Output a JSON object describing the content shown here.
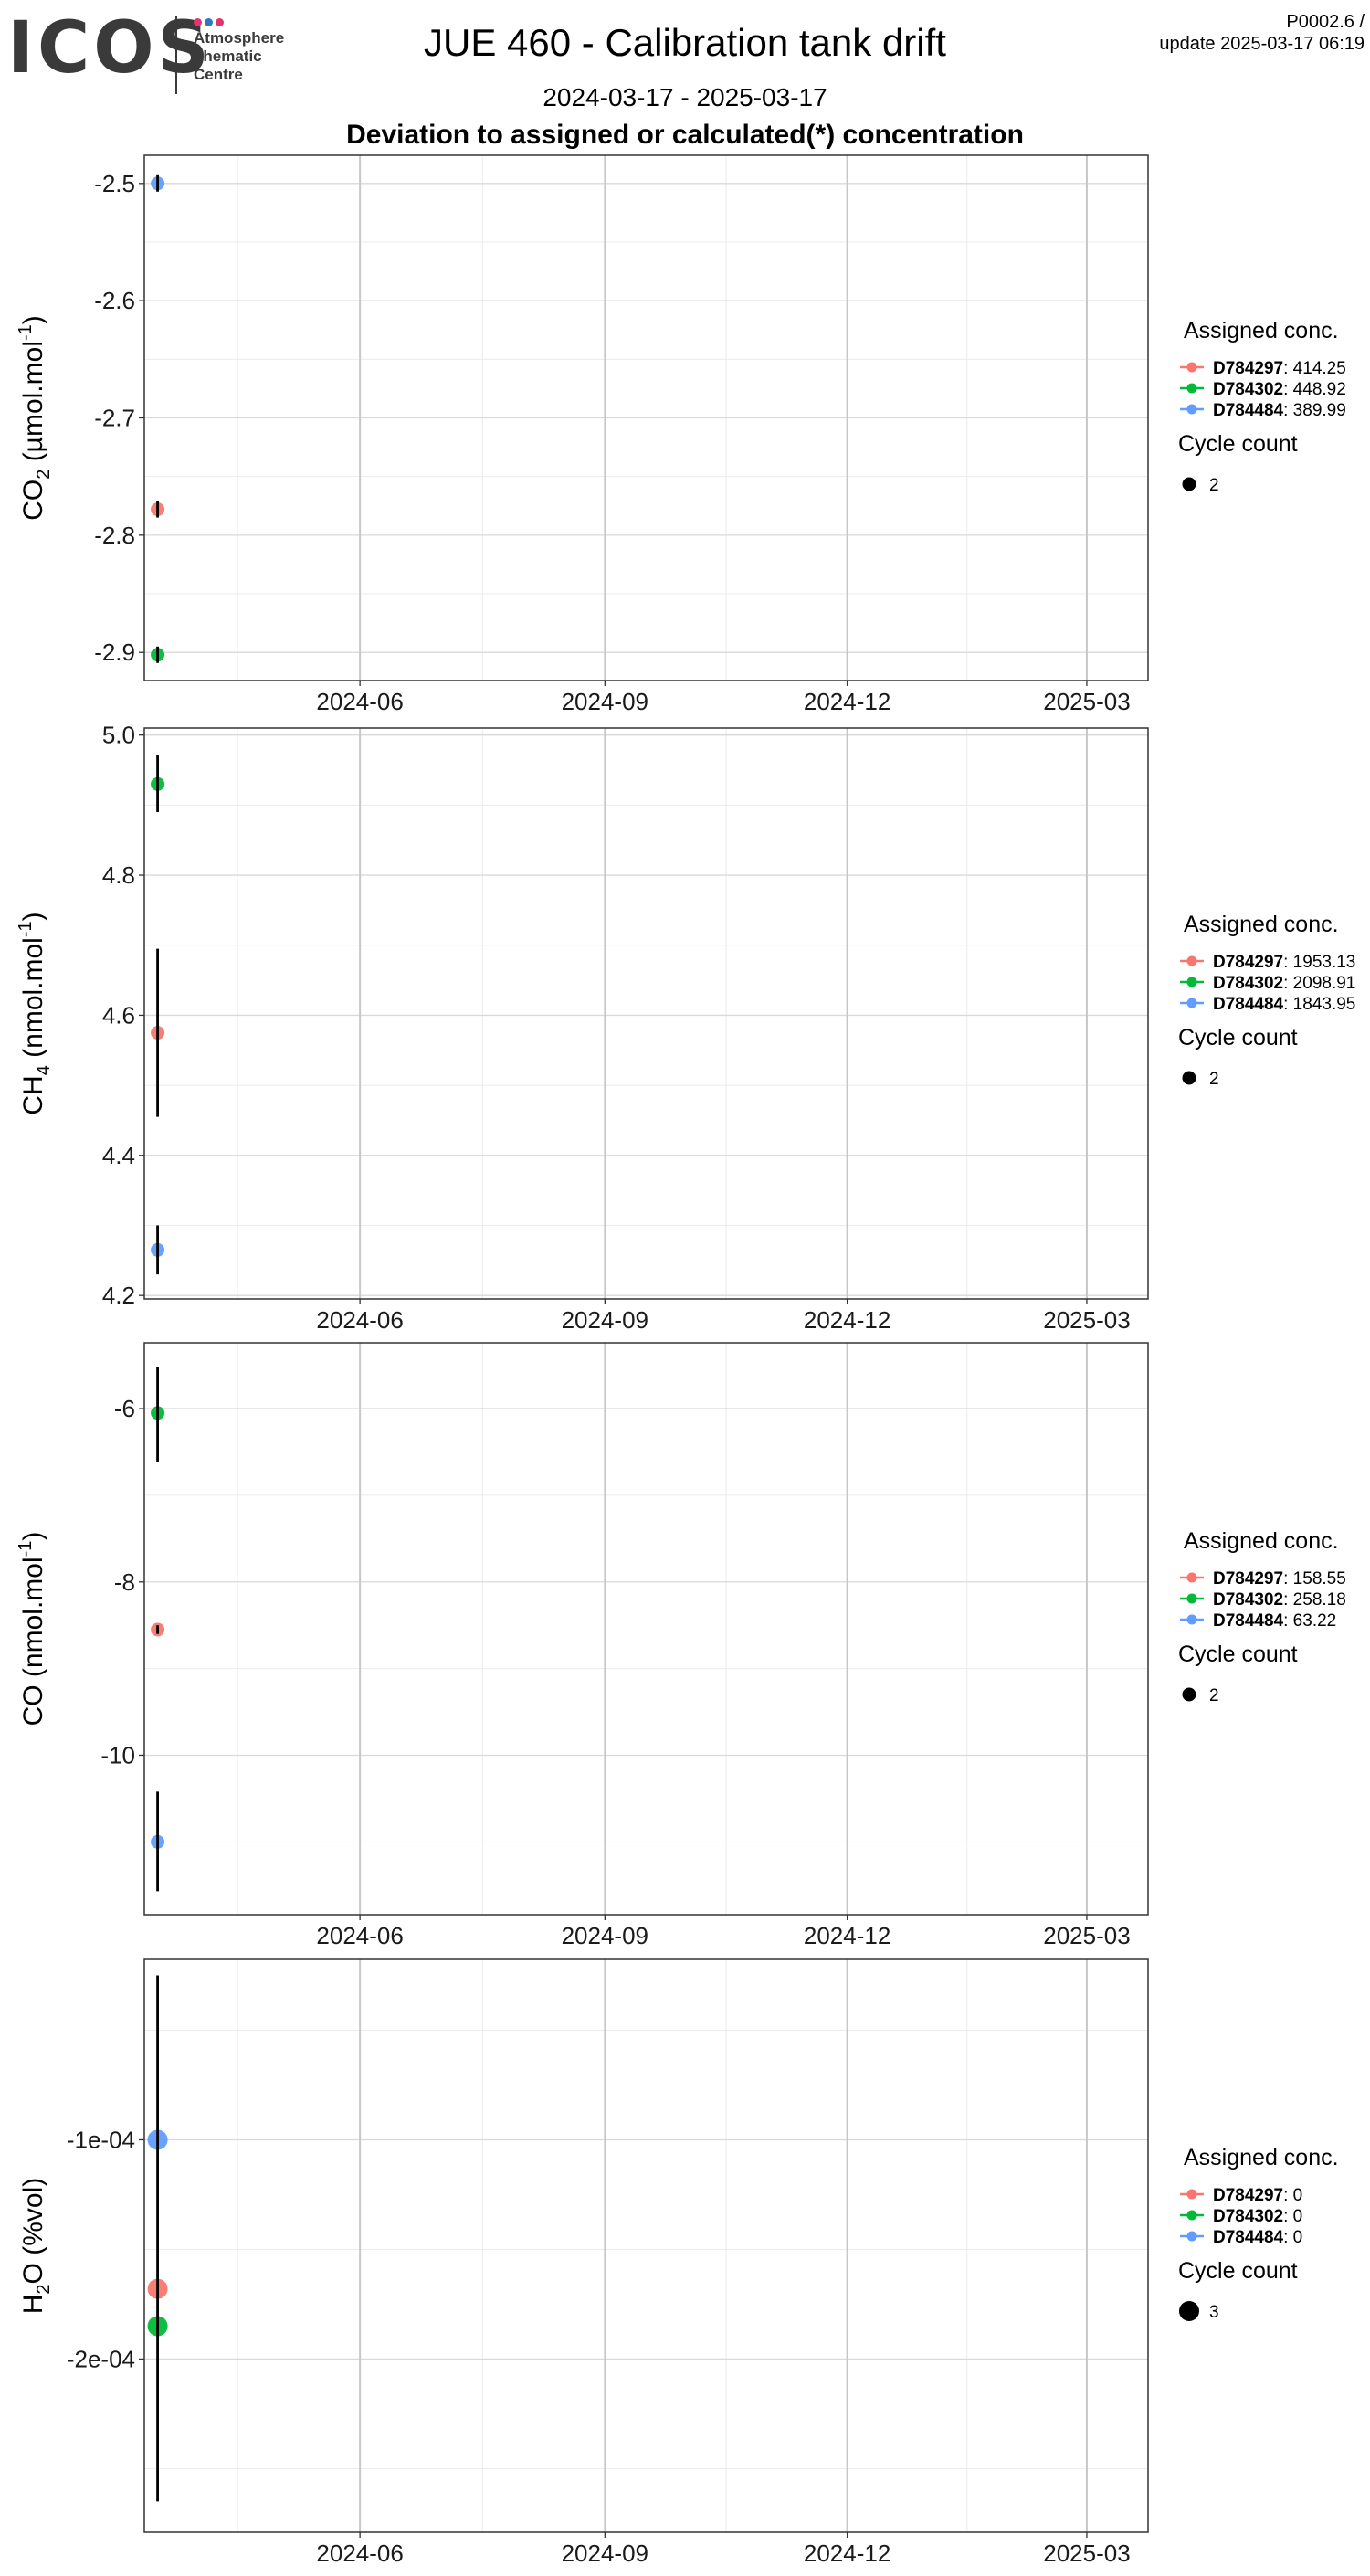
{
  "logo": {
    "wordmark": "ICOS",
    "lines": [
      "Atmosphere",
      "Thematic",
      "Centre"
    ],
    "dot_colors": [
      "#e5336f",
      "#2b77c9",
      "#e5336f"
    ]
  },
  "title": "JUE 460 - Calibration tank drift",
  "subtitle": "2024-03-17 - 2025-03-17",
  "heading": "Deviation to assigned or calculated(*) concentration",
  "corner": {
    "version": "P0002.6 /",
    "update": "update  2025-03-17 06:19"
  },
  "colors": {
    "D784297": "#f8766d",
    "D784302": "#00ba38",
    "D784484": "#619cff"
  },
  "chart_data": [
    {
      "type": "scatter",
      "ylabel_main": "CO",
      "ylabel_sub": "2",
      "ylabel_unit": " (µmol.mol",
      "ylabel_sup": "-1",
      "ylabel_end": ")",
      "xlim": [
        "2024-03-12",
        "2025-03-24"
      ],
      "x_ticks": [
        "2024-06-01",
        "2024-09-01",
        "2024-12-01",
        "2025-03-01"
      ],
      "x_tick_labels": [
        "2024-06",
        "2024-09",
        "2024-12",
        "2025-03"
      ],
      "ylim": [
        -2.924,
        -2.476
      ],
      "y_ticks": [
        -2.5,
        -2.6,
        -2.7,
        -2.8,
        -2.9
      ],
      "y_tick_labels": [
        "-2.5",
        "-2.6",
        "-2.7",
        "-2.8",
        "-2.9"
      ],
      "legend_title": "Assigned conc.",
      "legend_entries": [
        {
          "tank": "D784297",
          "value": "414.25"
        },
        {
          "tank": "D784302",
          "value": "448.92"
        },
        {
          "tank": "D784484",
          "value": "389.99"
        }
      ],
      "size_legend_title": "Cycle count",
      "size_legend_value": "2",
      "series": [
        {
          "name": "D784297",
          "x": "2024-03-17",
          "y": -2.778,
          "ymin": -2.785,
          "ymax": -2.771,
          "cycles": 2
        },
        {
          "name": "D784302",
          "x": "2024-03-17",
          "y": -2.902,
          "ymin": -2.909,
          "ymax": -2.895,
          "cycles": 2
        },
        {
          "name": "D784484",
          "x": "2024-03-17",
          "y": -2.5,
          "ymin": -2.507,
          "ymax": -2.493,
          "cycles": 2
        }
      ]
    },
    {
      "type": "scatter",
      "ylabel_main": "CH",
      "ylabel_sub": "4",
      "ylabel_unit": " (nmol.mol",
      "ylabel_sup": "-1",
      "ylabel_end": ")",
      "xlim": [
        "2024-03-12",
        "2025-03-24"
      ],
      "x_ticks": [
        "2024-06-01",
        "2024-09-01",
        "2024-12-01",
        "2025-03-01"
      ],
      "x_tick_labels": [
        "2024-06",
        "2024-09",
        "2024-12",
        "2025-03"
      ],
      "ylim": [
        4.195,
        5.01
      ],
      "y_ticks": [
        5.0,
        4.8,
        4.6,
        4.4,
        4.2
      ],
      "y_tick_labels": [
        "5.0",
        "4.8",
        "4.6",
        "4.4",
        "4.2"
      ],
      "legend_title": "Assigned conc.",
      "legend_entries": [
        {
          "tank": "D784297",
          "value": "1953.13"
        },
        {
          "tank": "D784302",
          "value": "2098.91"
        },
        {
          "tank": "D784484",
          "value": "1843.95"
        }
      ],
      "size_legend_title": "Cycle count",
      "size_legend_value": "2",
      "series": [
        {
          "name": "D784297",
          "x": "2024-03-17",
          "y": 4.575,
          "ymin": 4.455,
          "ymax": 4.695,
          "cycles": 2
        },
        {
          "name": "D784302",
          "x": "2024-03-17",
          "y": 4.93,
          "ymin": 4.89,
          "ymax": 4.972,
          "cycles": 2
        },
        {
          "name": "D784484",
          "x": "2024-03-17",
          "y": 4.265,
          "ymin": 4.23,
          "ymax": 4.3,
          "cycles": 2
        }
      ]
    },
    {
      "type": "scatter",
      "ylabel_main": "CO",
      "ylabel_sub": "",
      "ylabel_unit": " (nmol.mol",
      "ylabel_sup": "-1",
      "ylabel_end": ")",
      "xlim": [
        "2024-03-12",
        "2025-03-24"
      ],
      "x_ticks": [
        "2024-06-01",
        "2024-09-01",
        "2024-12-01",
        "2025-03-01"
      ],
      "x_tick_labels": [
        "2024-06",
        "2024-09",
        "2024-12",
        "2025-03"
      ],
      "ylim": [
        -11.84,
        -5.24
      ],
      "y_ticks": [
        -6,
        -8,
        -10
      ],
      "y_tick_labels": [
        "-6",
        "-8",
        "-10"
      ],
      "legend_title": "Assigned conc.",
      "legend_entries": [
        {
          "tank": "D784297",
          "value": "158.55"
        },
        {
          "tank": "D784302",
          "value": "258.18"
        },
        {
          "tank": "D784484",
          "value": "63.22"
        }
      ],
      "size_legend_title": "Cycle count",
      "size_legend_value": "2",
      "series": [
        {
          "name": "D784297",
          "x": "2024-03-17",
          "y": -8.55,
          "ymin": -8.6,
          "ymax": -8.5,
          "cycles": 2
        },
        {
          "name": "D784302",
          "x": "2024-03-17",
          "y": -6.05,
          "ymin": -6.62,
          "ymax": -5.52,
          "cycles": 2
        },
        {
          "name": "D784484",
          "x": "2024-03-17",
          "y": -11.0,
          "ymin": -11.57,
          "ymax": -10.42,
          "cycles": 2
        }
      ]
    },
    {
      "type": "scatter",
      "ylabel_main": "H",
      "ylabel_sub": "2",
      "ylabel_unit": "O (%vol)",
      "ylabel_sup": "",
      "ylabel_end": "",
      "xlim": [
        "2024-03-12",
        "2025-03-24"
      ],
      "x_ticks": [
        "2024-06-01",
        "2024-09-01",
        "2024-12-01",
        "2025-03-01"
      ],
      "x_tick_labels": [
        "2024-06",
        "2024-09",
        "2024-12",
        "2025-03"
      ],
      "ylim": [
        -0.000279,
        -1.77e-05
      ],
      "y_ticks": [
        -0.0001,
        -0.0002
      ],
      "y_tick_labels": [
        "-1e-04",
        "-2e-04"
      ],
      "legend_title": "Assigned conc.",
      "legend_entries": [
        {
          "tank": "D784297",
          "value": "0"
        },
        {
          "tank": "D784302",
          "value": "0"
        },
        {
          "tank": "D784484",
          "value": "0"
        }
      ],
      "size_legend_title": "Cycle count",
      "size_legend_value": "3",
      "series": [
        {
          "name": "D784297",
          "x": "2024-03-17",
          "y": -0.000168,
          "ymin": -0.000168,
          "ymax": -0.000168,
          "cycles": 3
        },
        {
          "name": "D784302",
          "x": "2024-03-17",
          "y": -0.000185,
          "ymin": -0.000185,
          "ymax": -0.000185,
          "cycles": 3
        },
        {
          "name": "D784484",
          "x": "2024-03-17",
          "y": -0.0001,
          "ymin": -0.000265,
          "ymax": -2.5e-05,
          "cycles": 3
        }
      ]
    }
  ]
}
